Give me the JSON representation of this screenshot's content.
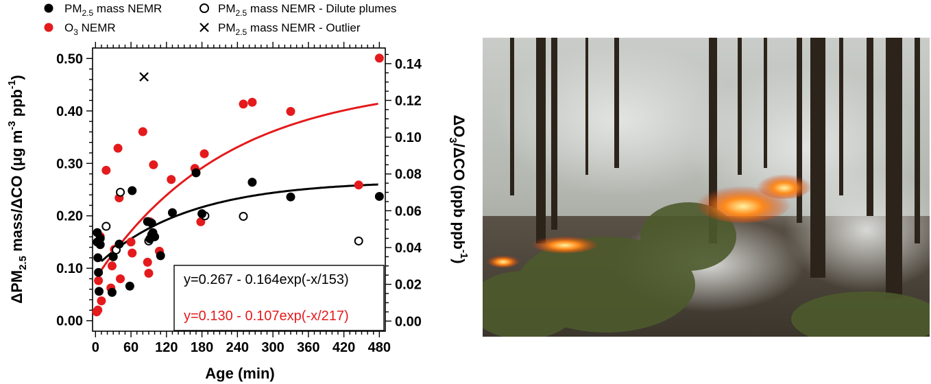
{
  "legend": {
    "pm_nemr": "PM2.5 mass NEMR",
    "o3_nemr": "O3 NEMR",
    "pm_dilute": "PM2.5 mass NEMR - Dilute plumes",
    "pm_outlier": "PM2.5 mass NEMR - Outlier"
  },
  "equations": {
    "pm": "y=0.267 - 0.164exp(-x/153)",
    "o3": "y=0.130 - 0.107exp(-x/217)"
  },
  "colors": {
    "pm": "#000000",
    "o3": "#e41a1c"
  },
  "chart_data": {
    "type": "scatter",
    "xlabel": "Age (min)",
    "ylabel_left": "ΔPM2.5 mass/ΔCO (μg m-3 ppb-1)",
    "ylabel_right": "ΔO3/ΔCO (ppb ppb-1)",
    "xlim": [
      -5,
      490
    ],
    "ylim_left": [
      -0.02,
      0.52
    ],
    "ylim_right": [
      -0.0055,
      0.1485
    ],
    "xticks": [
      0,
      60,
      120,
      180,
      240,
      300,
      360,
      420,
      480
    ],
    "yticks_left": [
      0.0,
      0.1,
      0.2,
      0.3,
      0.4,
      0.5
    ],
    "yticks_left_labels": [
      "0.00",
      "0.10",
      "0.20",
      "0.30",
      "0.40",
      "0.50"
    ],
    "yticks_right": [
      0.0,
      0.02,
      0.04,
      0.06,
      0.08,
      0.1,
      0.12,
      0.14
    ],
    "yticks_right_labels": [
      "0.00",
      "0.02",
      "0.04",
      "0.06",
      "0.08",
      "0.10",
      "0.12",
      "0.14"
    ],
    "legend_position": "top",
    "series": [
      {
        "name": "PM2.5 mass NEMR",
        "axis": "left",
        "marker": "filled-circle",
        "color": "#000000",
        "x": [
          3,
          3,
          4,
          5,
          6,
          8,
          8,
          28,
          30,
          40,
          58,
          62,
          88,
          92,
          95,
          97,
          100,
          110,
          130,
          170,
          180,
          265,
          330,
          480
        ],
        "y": [
          0.168,
          0.15,
          0.12,
          0.092,
          0.056,
          0.145,
          0.157,
          0.054,
          0.122,
          0.146,
          0.066,
          0.248,
          0.189,
          0.156,
          0.186,
          0.168,
          0.16,
          0.124,
          0.206,
          0.282,
          0.204,
          0.264,
          0.236,
          0.237
        ]
      },
      {
        "name": "PM2.5 mass NEMR - Dilute plumes",
        "axis": "left",
        "marker": "open-circle",
        "color": "#000000",
        "x": [
          18,
          35,
          42,
          90,
          95,
          185,
          250,
          445
        ],
        "y": [
          0.18,
          0.135,
          0.245,
          0.152,
          0.164,
          0.2,
          0.199,
          0.152
        ]
      },
      {
        "name": "PM2.5 mass NEMR - Outlier",
        "axis": "left",
        "marker": "x",
        "color": "#000000",
        "x": [
          82
        ],
        "y": [
          0.465
        ]
      },
      {
        "name": "O3 NEMR",
        "axis": "right",
        "marker": "filled-circle",
        "color": "#e41a1c",
        "x": [
          2,
          4,
          5,
          8,
          10,
          18,
          26,
          28,
          32,
          38,
          40,
          42,
          60,
          62,
          80,
          88,
          90,
          92,
          98,
          108,
          128,
          168,
          178,
          184,
          250,
          265,
          330,
          445,
          480
        ],
        "y": [
          0.005,
          0.006,
          0.022,
          0.046,
          0.011,
          0.082,
          0.018,
          0.03,
          0.039,
          0.094,
          0.067,
          0.023,
          0.043,
          0.037,
          0.103,
          0.032,
          0.026,
          0.054,
          0.085,
          0.038,
          0.077,
          0.083,
          0.054,
          0.091,
          0.118,
          0.119,
          0.114,
          0.074,
          0.143
        ]
      }
    ],
    "fits": [
      {
        "name": "PM2.5 mass fit",
        "axis": "left",
        "color": "#000000",
        "a": 0.267,
        "b": 0.164,
        "tau": 153,
        "x_range": [
          10,
          480
        ]
      },
      {
        "name": "O3 fit",
        "axis": "right",
        "color": "#e41a1c",
        "a": 0.13,
        "b": 0.107,
        "tau": 217,
        "x_range": [
          10,
          480
        ]
      }
    ]
  }
}
